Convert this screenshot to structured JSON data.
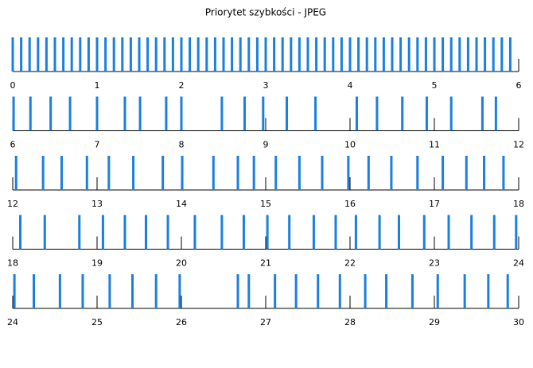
{
  "chart_data": {
    "type": "timeline",
    "title": "Priorytet szybkości - JPEG",
    "color": "#1a7fe0",
    "xlim": [
      0,
      30
    ],
    "xticks": [
      0,
      1,
      2,
      3,
      4,
      5,
      6,
      7,
      8,
      9,
      10,
      11,
      12,
      13,
      14,
      15,
      16,
      17,
      18,
      19,
      20,
      21,
      22,
      23,
      24,
      25,
      26,
      27,
      28,
      29,
      30
    ],
    "x": [
      0.0,
      0.1,
      0.2,
      0.3,
      0.4,
      0.5,
      0.6,
      0.7,
      0.8,
      0.9,
      1.0,
      1.1,
      1.2,
      1.3,
      1.4,
      1.5,
      1.6,
      1.7,
      1.8,
      1.9,
      2.0,
      2.1,
      2.2,
      2.3,
      2.4,
      2.5,
      2.6,
      2.7,
      2.8,
      2.9,
      3.0,
      3.1,
      3.2,
      3.3,
      3.4,
      3.5,
      3.6,
      3.7,
      3.8,
      3.9,
      4.0,
      4.1,
      4.2,
      4.3,
      4.4,
      4.5,
      4.6,
      4.7,
      4.8,
      4.9,
      5.0,
      5.1,
      5.2,
      5.3,
      5.4,
      5.5,
      5.6,
      5.7,
      5.8,
      5.9,
      6.01,
      6.21,
      6.45,
      6.68,
      7.0,
      7.33,
      7.51,
      7.82,
      8.0,
      8.48,
      8.75,
      8.97,
      9.25,
      9.59,
      10.08,
      10.32,
      10.62,
      10.91,
      11.2,
      11.57,
      11.73,
      12.04,
      12.36,
      12.58,
      12.88,
      13.14,
      13.43,
      13.78,
      14.01,
      14.38,
      14.67,
      14.86,
      15.12,
      15.4,
      15.67,
      15.98,
      16.22,
      16.49,
      16.8,
      17.1,
      17.38,
      17.59,
      17.82,
      18.09,
      18.38,
      18.79,
      19.07,
      19.33,
      19.58,
      19.84,
      20.16,
      20.48,
      20.74,
      21.02,
      21.28,
      21.57,
      21.83,
      22.07,
      22.35,
      22.58,
      22.88,
      23.17,
      23.44,
      23.71,
      23.97,
      24.02,
      24.25,
      24.56,
      24.83,
      25.15,
      25.42,
      25.7,
      25.98,
      26.67,
      26.8,
      27.11,
      27.36,
      27.62,
      27.88,
      28.18,
      28.43,
      28.74,
      29.04,
      29.36,
      29.64,
      29.87
    ]
  }
}
